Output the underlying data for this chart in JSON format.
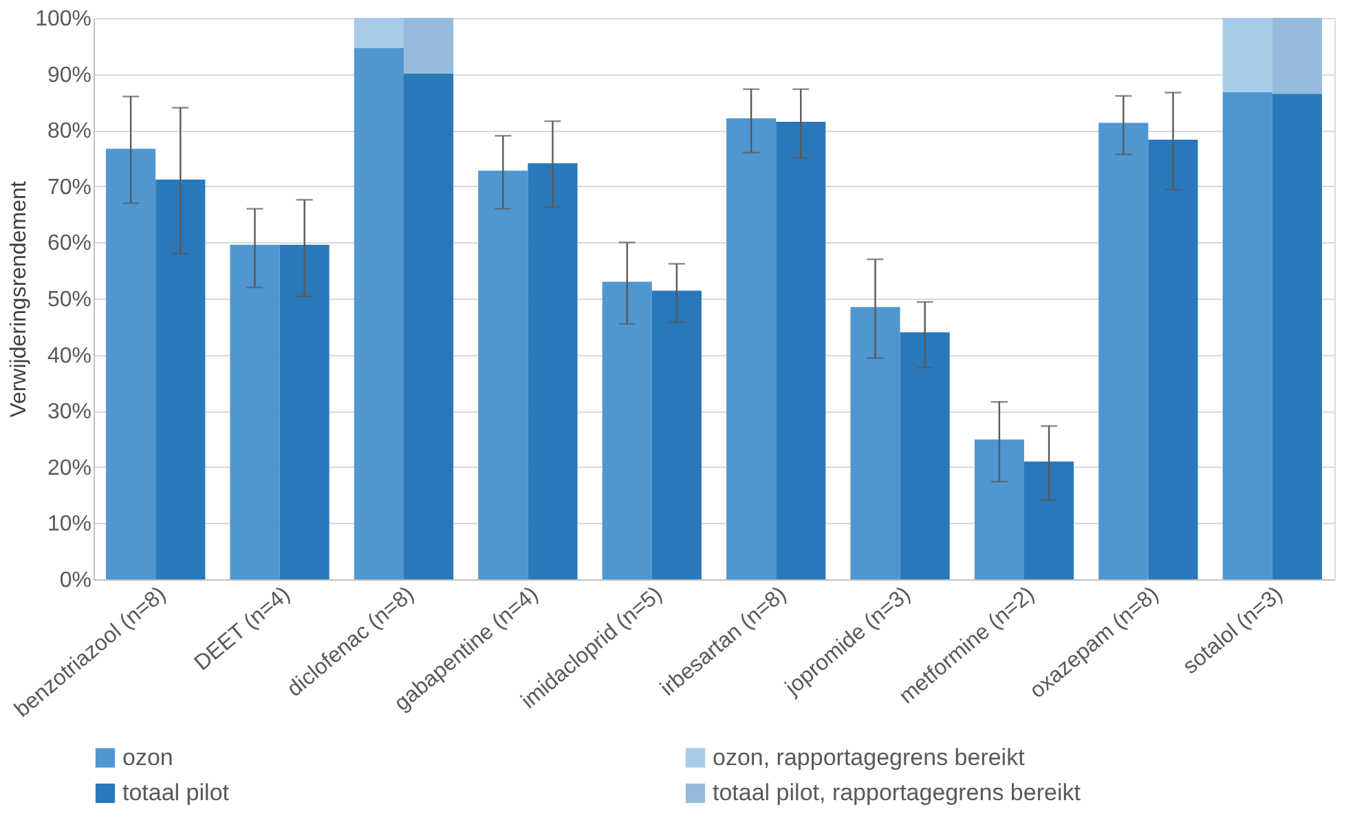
{
  "chart_data": {
    "type": "bar",
    "ylabel": "Verwijderingsrendement",
    "categories": [
      "benzotriazool (n=8)",
      "DEET (n=4)",
      "diclofenac (n=8)",
      "gabapentine (n=4)",
      "imidacloprid (n=5)",
      "irbesartan (n=8)",
      "jopromide (n=3)",
      "metformine (n=2)",
      "oxazepam (n=8)",
      "sotalol (n=3)"
    ],
    "series": [
      {
        "name": "ozon",
        "color": "#5097d1",
        "values": [
          76.7,
          59.6,
          94.6,
          72.8,
          53,
          82.1,
          48.5,
          24.9,
          81.3,
          86.8
        ],
        "errors": [
          [
            67,
            86
          ],
          [
            52,
            66
          ],
          null,
          [
            66,
            79
          ],
          [
            45.5,
            60
          ],
          [
            76,
            87.3
          ],
          [
            39.4,
            57
          ],
          [
            17.4,
            31.6
          ],
          [
            75.7,
            86.1
          ],
          null
        ]
      },
      {
        "name": "ozon, rapportagegrens bereikt",
        "color": "#a8cbe8",
        "values": [
          null,
          null,
          5.4,
          null,
          null,
          null,
          null,
          null,
          null,
          13.2
        ],
        "base": [
          null,
          null,
          94.6,
          null,
          null,
          null,
          null,
          null,
          null,
          86.8
        ]
      },
      {
        "name": "totaal pilot",
        "color": "#2a78ba",
        "values": [
          71.2,
          59.6,
          90.1,
          74.1,
          51.4,
          81.5,
          44,
          21,
          78.3,
          86.5
        ],
        "errors": [
          [
            58,
            84
          ],
          [
            50.4,
            67.6
          ],
          null,
          [
            66.3,
            81.6
          ],
          [
            45.8,
            56.2
          ],
          [
            75,
            87.3
          ],
          [
            37.7,
            49.4
          ],
          [
            14.1,
            27.3
          ],
          [
            69.4,
            86.7
          ],
          null
        ]
      },
      {
        "name": "totaal pilot, rapportagegrens bereikt",
        "color": "#94bbdc",
        "values": [
          null,
          null,
          9.9,
          null,
          null,
          null,
          null,
          null,
          null,
          13.5
        ],
        "base": [
          null,
          null,
          90.1,
          null,
          null,
          null,
          null,
          null,
          null,
          86.5
        ]
      }
    ],
    "ylim": [
      0,
      100
    ],
    "yticks": [
      {
        "value": 0,
        "label": "0%"
      },
      {
        "value": 10,
        "label": "10%"
      },
      {
        "value": 20,
        "label": "20%"
      },
      {
        "value": 30,
        "label": "30%"
      },
      {
        "value": 40,
        "label": "40%"
      },
      {
        "value": 50,
        "label": "50%"
      },
      {
        "value": 60,
        "label": "60%"
      },
      {
        "value": 70,
        "label": "70%"
      },
      {
        "value": 80,
        "label": "80%"
      },
      {
        "value": 90,
        "label": "90%"
      },
      {
        "value": 100,
        "label": "100%"
      }
    ],
    "grid": "y",
    "legend": "bottom"
  }
}
